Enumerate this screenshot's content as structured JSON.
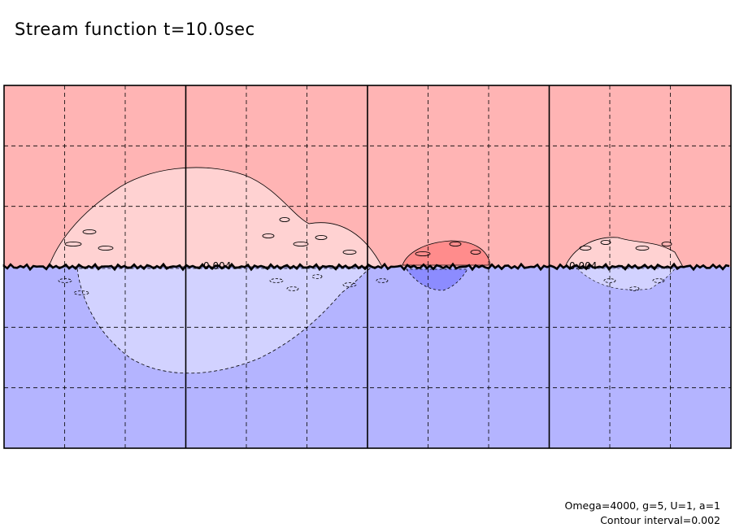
{
  "title": "Stream function t=10.0sec",
  "annotations": {
    "params": "Omega=4000, g=5, U=1, a=1",
    "contour_interval": "Contour interval=0.002"
  },
  "colors": {
    "positive_high": "#ffb4b4",
    "positive_low": "#ffd2d2",
    "negative_high": "#b4b4ff",
    "negative_low": "#d2d2ff",
    "positive_strong": "#ff8c8c",
    "negative_strong": "#8c8cff",
    "contour": "#000000"
  },
  "chart_data": {
    "type": "heatmap",
    "title": "Stream function t=10.0sec",
    "xlabel": "",
    "ylabel": "",
    "grid": true,
    "x_panels": 4,
    "x_subdivisions": 3,
    "y_subdivisions": 6,
    "contour_interval": 0.002,
    "contour_labels": [
      "0.004",
      "0.004"
    ],
    "regions": [
      {
        "name": "upper layer",
        "sign": "positive"
      },
      {
        "name": "lower layer",
        "sign": "negative"
      }
    ]
  }
}
